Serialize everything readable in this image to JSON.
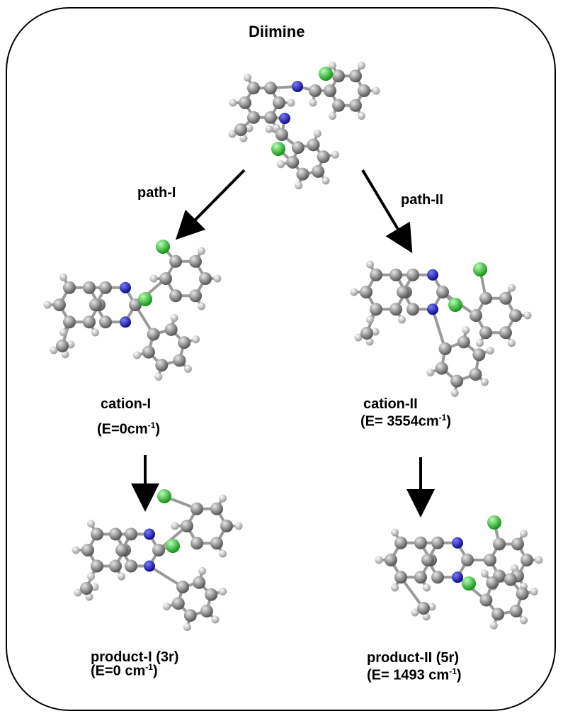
{
  "title": "Diimine",
  "paths": {
    "left": "path-I",
    "right": "path-II"
  },
  "cations": {
    "left": {
      "name": "cation-I",
      "energy_prefix": "(E=0cm",
      "energy_exp": "-1",
      "energy_suffix": ")"
    },
    "right": {
      "name": "cation-II",
      "energy_prefix": "(E= 3554cm",
      "energy_exp": "-1",
      "energy_suffix": ")"
    }
  },
  "products": {
    "left": {
      "name": "product-I (3r)",
      "energy_prefix": "(E=0 cm",
      "energy_exp": "-1",
      "energy_suffix": ")"
    },
    "right": {
      "name": "product-II (5r)",
      "energy_prefix": "(E= 1493 cm",
      "energy_exp": "-1",
      "energy_suffix": ")"
    }
  },
  "atom_colors": {
    "carbon": "#8a8a8a",
    "hydrogen": "#e6e6e6",
    "nitrogen": "#1a1ad6",
    "chlorine": "#2fd02f"
  }
}
